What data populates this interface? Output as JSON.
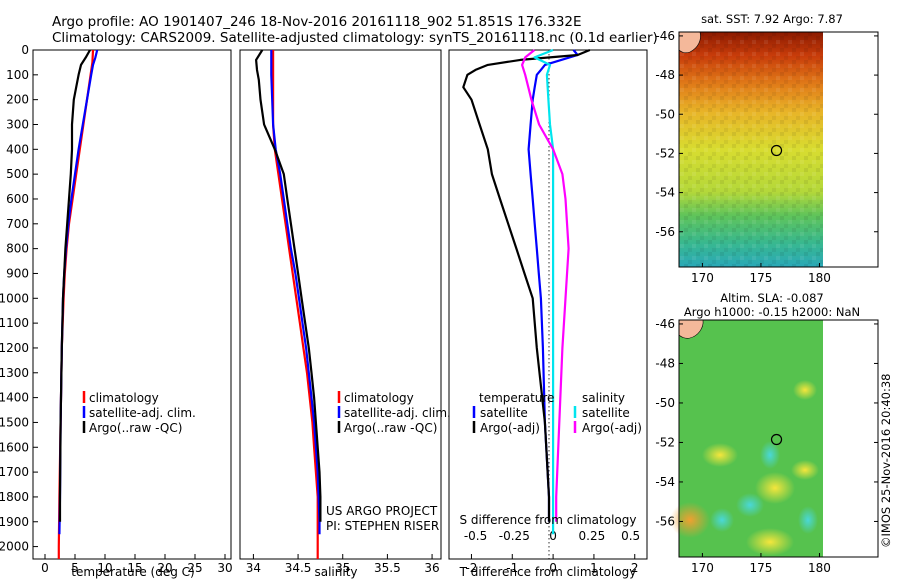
{
  "header": {
    "line1": "Argo profile: AO 1901407_246 18-Nov-2016 20161118_902 51.851S 176.332E",
    "line2": "Climatology: CARS2009. Satellite-adjusted climatology: synTS_20161118.nc (0.1d earlier)"
  },
  "colors": {
    "climatology": "#ff0000",
    "satellite": "#0000ff",
    "argo": "#000000",
    "sat_salinity": "#00e5ee",
    "argo_salinity": "#ff00ff"
  },
  "credits": {
    "project": "US ARGO PROJECT",
    "pi": "PI: STEPHEN RISER"
  },
  "timestamp": "©IMOS 25-Nov-2016 20:40:38",
  "chart_data": [
    {
      "type": "line",
      "name": "temperature",
      "xlabel": "temperature (deg C)",
      "xlim": [
        -2,
        31
      ],
      "ylim": [
        2050,
        0
      ],
      "xticks": [
        0,
        5,
        10,
        15,
        20,
        25,
        30
      ],
      "yticks": [
        0,
        100,
        200,
        300,
        400,
        500,
        600,
        700,
        800,
        900,
        1000,
        1100,
        1200,
        1300,
        1400,
        1500,
        1600,
        1700,
        1800,
        1900,
        2000
      ],
      "legend": [
        "climatology",
        "satellite-adj. clim.",
        "Argo(..raw -QC)"
      ],
      "legend_position": "lower-center",
      "series": [
        {
          "key": "climatology",
          "depth": [
            0,
            50,
            100,
            200,
            300,
            400,
            500,
            600,
            700,
            800,
            900,
            1000,
            1200,
            1500,
            1800,
            2000,
            2050
          ],
          "values": [
            8.0,
            7.9,
            7.6,
            7.0,
            6.4,
            5.8,
            5.2,
            4.6,
            4.0,
            3.6,
            3.3,
            3.1,
            2.8,
            2.6,
            2.4,
            2.3,
            2.3
          ]
        },
        {
          "key": "satellite",
          "depth": [
            0,
            30,
            60,
            100,
            200,
            300,
            400,
            500,
            600,
            700,
            800,
            900,
            1000,
            1200,
            1500,
            1800,
            1950
          ],
          "values": [
            8.7,
            8.4,
            8.0,
            7.7,
            7.0,
            6.3,
            5.6,
            5.0,
            4.4,
            3.9,
            3.5,
            3.2,
            3.0,
            2.8,
            2.6,
            2.5,
            2.4
          ]
        },
        {
          "key": "argo",
          "depth": [
            0,
            30,
            60,
            100,
            150,
            200,
            300,
            400,
            500,
            600,
            700,
            800,
            900,
            1000,
            1200,
            1500,
            1800,
            1900
          ],
          "values": [
            7.5,
            6.8,
            6.0,
            5.6,
            5.2,
            4.8,
            4.5,
            4.5,
            4.3,
            4.0,
            3.7,
            3.4,
            3.2,
            3.0,
            2.8,
            2.6,
            2.5,
            2.5
          ]
        }
      ]
    },
    {
      "type": "line",
      "name": "salinity",
      "xlabel": "salinity",
      "xlim": [
        33.85,
        36.1
      ],
      "ylim": [
        2050,
        0
      ],
      "xticks": [
        34,
        34.5,
        35,
        35.5,
        36
      ],
      "legend": [
        "climatology",
        "satellite-adj. clim.",
        "Argo(..raw -QC)"
      ],
      "legend_position": "lower-center",
      "series": [
        {
          "key": "climatology",
          "depth": [
            0,
            100,
            200,
            300,
            400,
            500,
            600,
            700,
            800,
            900,
            1000,
            1100,
            1200,
            1300,
            1400,
            1500,
            1600,
            1700,
            1800,
            1900,
            2050
          ],
          "values": [
            34.22,
            34.22,
            34.22,
            34.22,
            34.24,
            34.28,
            34.32,
            34.36,
            34.4,
            34.44,
            34.48,
            34.52,
            34.56,
            34.6,
            34.63,
            34.66,
            34.68,
            34.7,
            34.72,
            34.72,
            34.72
          ]
        },
        {
          "key": "satellite",
          "depth": [
            0,
            100,
            200,
            300,
            400,
            500,
            600,
            700,
            800,
            900,
            1000,
            1100,
            1200,
            1300,
            1400,
            1500,
            1600,
            1700,
            1800,
            1900,
            1950
          ],
          "values": [
            34.2,
            34.2,
            34.21,
            34.22,
            34.25,
            34.3,
            34.34,
            34.38,
            34.42,
            34.47,
            34.51,
            34.55,
            34.59,
            34.62,
            34.65,
            34.68,
            34.7,
            34.72,
            34.73,
            34.74,
            34.74
          ]
        },
        {
          "key": "argo",
          "depth": [
            0,
            40,
            80,
            120,
            200,
            300,
            400,
            500,
            600,
            700,
            800,
            900,
            1000,
            1100,
            1200,
            1300,
            1400,
            1500,
            1600,
            1700,
            1800,
            1900
          ],
          "values": [
            34.1,
            34.03,
            34.04,
            34.06,
            34.08,
            34.12,
            34.24,
            34.34,
            34.38,
            34.42,
            34.46,
            34.5,
            34.54,
            34.58,
            34.62,
            34.65,
            34.68,
            34.7,
            34.72,
            34.74,
            34.75,
            34.75
          ]
        }
      ]
    },
    {
      "type": "line",
      "name": "difference",
      "xlabel": "T difference from climatology",
      "xlabel2": "S difference from climatology",
      "xlim": [
        -2.55,
        2.3
      ],
      "ylim": [
        2050,
        0
      ],
      "xticks": [
        -2,
        -1,
        0,
        1,
        2
      ],
      "xticks2": [
        "-0.5",
        "-0.25",
        "0",
        "0.25",
        "0.5"
      ],
      "legend_headers": [
        "temperature",
        "salinity"
      ],
      "legend": [
        "satellite",
        "Argo(-adj)",
        "satellite",
        "Argo(-adj)"
      ],
      "legend_position": "lower-center",
      "series": [
        {
          "key": "t_satellite",
          "depth": [
            0,
            20,
            40,
            60,
            80,
            100,
            150,
            200,
            300,
            400,
            500,
            600,
            700,
            800,
            900,
            1000,
            1200,
            1500,
            1800,
            1900
          ],
          "values": [
            0.5,
            0.6,
            0.2,
            -0.2,
            -0.3,
            -0.4,
            -0.45,
            -0.5,
            -0.55,
            -0.6,
            -0.55,
            -0.5,
            -0.45,
            -0.4,
            -0.35,
            -0.3,
            -0.25,
            -0.2,
            -0.1,
            -0.1
          ]
        },
        {
          "key": "t_argo",
          "depth": [
            0,
            20,
            40,
            60,
            80,
            100,
            150,
            200,
            300,
            400,
            500,
            600,
            700,
            800,
            900,
            1000,
            1200,
            1500,
            1800,
            1900
          ],
          "values": [
            0.9,
            0.6,
            -0.8,
            -1.6,
            -1.9,
            -2.1,
            -2.2,
            -2.0,
            -1.8,
            -1.6,
            -1.5,
            -1.3,
            -1.1,
            -0.9,
            -0.7,
            -0.5,
            -0.4,
            -0.2,
            -0.1,
            -0.1
          ]
        },
        {
          "key": "s_satellite",
          "depth": [
            0,
            30,
            60,
            100,
            200,
            300,
            400,
            500,
            600,
            800,
            1000,
            1200,
            1500,
            1800,
            1950
          ],
          "values": [
            0.0,
            -0.12,
            -0.02,
            -0.04,
            -0.03,
            -0.02,
            0.0,
            0.0,
            0.0,
            0.0,
            0.0,
            0.0,
            0.0,
            0.0,
            0.0
          ]
        },
        {
          "key": "s_argo",
          "depth": [
            0,
            30,
            60,
            100,
            150,
            200,
            300,
            400,
            500,
            600,
            800,
            1000,
            1200,
            1500,
            1800,
            1900
          ],
          "values": [
            -0.12,
            -0.18,
            -0.2,
            -0.18,
            -0.16,
            -0.14,
            -0.09,
            0.0,
            0.06,
            0.08,
            0.1,
            0.08,
            0.06,
            0.04,
            0.02,
            0.02
          ]
        }
      ]
    },
    {
      "type": "heatmap",
      "name": "sst_map",
      "title": "sat. SST: 7.92  Argo: 7.87",
      "xlim": [
        168,
        185
      ],
      "ylim": [
        -57.8,
        -45.8
      ],
      "xticks": [
        170,
        175,
        180
      ],
      "yticks": [
        -46,
        -48,
        -50,
        -52,
        -54,
        -56
      ],
      "marker": {
        "lon": 176.332,
        "lat": -51.851
      }
    },
    {
      "type": "heatmap",
      "name": "sla_map",
      "title": "Altim. SLA: -0.087",
      "subtitle": "Argo h1000: -0.15 h2000: NaN",
      "xlim": [
        168,
        185
      ],
      "ylim": [
        -57.8,
        -45.8
      ],
      "xticks": [
        170,
        175,
        180
      ],
      "yticks": [
        -46,
        -48,
        -50,
        -52,
        -54,
        -56
      ],
      "marker": {
        "lon": 176.332,
        "lat": -51.851
      }
    }
  ]
}
